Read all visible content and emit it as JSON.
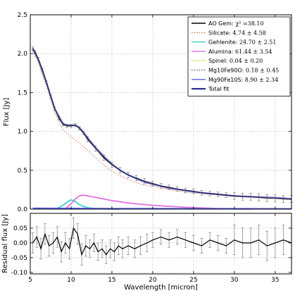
{
  "chart_data": [
    {
      "type": "line",
      "xlabel": "",
      "ylabel": "Flux [Jy]",
      "xlim": [
        5,
        37
      ],
      "ylim": [
        0,
        2.5
      ],
      "xticks": [
        5,
        10,
        15,
        20,
        25,
        30,
        35
      ],
      "yticks": [
        0.0,
        0.5,
        1.0,
        1.5,
        2.0,
        2.5
      ],
      "ytick_labels": [
        "0.0",
        "0.5",
        "1.0",
        "1.5",
        "2.0",
        "2.5"
      ],
      "grid": true,
      "legend_position": "top-right",
      "legend": [
        {
          "name": "AO Gem: ",
          "value": "χ² =38.10",
          "color": "#000000",
          "style": "solid"
        },
        {
          "name": "Silicate: ",
          "value": "4.74 ± 4.58",
          "color": "#e07050",
          "style": "dotted"
        },
        {
          "name": "Gehlenite: ",
          "value": "24.70 ± 2.51",
          "color": "#40d0d0",
          "style": "solid"
        },
        {
          "name": "Alumina: ",
          "value": "61.44 ± 3.54",
          "color": "#e070e0",
          "style": "solid"
        },
        {
          "name": "Spinel: ",
          "value": "0.04 ± 0.20",
          "color": "#d0d000",
          "style": "dotted"
        },
        {
          "name": "Mg10Fe90O: ",
          "value": "0.18 ± 0.45",
          "color": "#606060",
          "style": "dotted"
        },
        {
          "name": "Mg90Fe10S: ",
          "value": "8.90 ± 2.34",
          "color": "#6060f0",
          "style": "solid"
        },
        {
          "name": "Total fit",
          "value": "",
          "color": "#303090",
          "style": "solid"
        }
      ],
      "series": [
        {
          "name": "AO Gem",
          "color": "#000000",
          "x": [
            5.3,
            5.6,
            6,
            6.5,
            7,
            7.5,
            8,
            8.5,
            9,
            9.5,
            10,
            10.5,
            11,
            11.5,
            12,
            13,
            14,
            15,
            16,
            17,
            18,
            19,
            20,
            21,
            22,
            23,
            24,
            25,
            26,
            27,
            28,
            29,
            30,
            31,
            32,
            33,
            34,
            35,
            36,
            37
          ],
          "y": [
            2.07,
            2.02,
            1.93,
            1.79,
            1.63,
            1.45,
            1.29,
            1.17,
            1.09,
            1.07,
            1.07,
            1.08,
            1.04,
            0.98,
            0.9,
            0.78,
            0.66,
            0.57,
            0.5,
            0.44,
            0.4,
            0.36,
            0.33,
            0.3,
            0.28,
            0.26,
            0.24,
            0.23,
            0.21,
            0.2,
            0.19,
            0.18,
            0.17,
            0.16,
            0.16,
            0.15,
            0.14,
            0.14,
            0.13,
            0.13
          ]
        },
        {
          "name": "Silicate",
          "color": "#e07050",
          "x": [
            5.3,
            6,
            7,
            8,
            9,
            10,
            11,
            12,
            13,
            14,
            15,
            16,
            17,
            18,
            19,
            20,
            22,
            24,
            26,
            28,
            30,
            32,
            34,
            36,
            37
          ],
          "y": [
            2.03,
            1.88,
            1.58,
            1.24,
            1.02,
            0.93,
            0.85,
            0.76,
            0.66,
            0.57,
            0.49,
            0.43,
            0.38,
            0.34,
            0.31,
            0.29,
            0.25,
            0.22,
            0.2,
            0.18,
            0.16,
            0.15,
            0.14,
            0.13,
            0.12
          ]
        },
        {
          "name": "Gehlenite",
          "color": "#40d0d0",
          "x": [
            8,
            8.5,
            9,
            9.5,
            10,
            10.5,
            11,
            11.5,
            12,
            12.5,
            13,
            14,
            15,
            16
          ],
          "y": [
            0.0,
            0.02,
            0.05,
            0.09,
            0.12,
            0.1,
            0.06,
            0.035,
            0.02,
            0.012,
            0.008,
            0.004,
            0.002,
            0.0
          ]
        },
        {
          "name": "Alumina",
          "color": "#e070e0",
          "x": [
            9,
            9.5,
            10,
            10.5,
            11,
            11.5,
            12,
            13,
            14,
            15,
            16,
            17,
            18,
            20,
            22,
            24,
            26,
            28,
            30,
            32
          ],
          "y": [
            0.0,
            0.02,
            0.07,
            0.13,
            0.17,
            0.18,
            0.17,
            0.15,
            0.13,
            0.11,
            0.095,
            0.08,
            0.068,
            0.05,
            0.036,
            0.024,
            0.015,
            0.008,
            0.004,
            0.0
          ]
        },
        {
          "name": "Spinel",
          "color": "#d0d000",
          "x": [
            5.3,
            37
          ],
          "y": [
            0.0,
            0.0
          ]
        },
        {
          "name": "Mg10Fe90O",
          "color": "#606060",
          "x": [
            5.3,
            37
          ],
          "y": [
            0.005,
            0.005
          ]
        },
        {
          "name": "Mg90Fe10S",
          "color": "#6060f0",
          "x": [
            5.3,
            10,
            15,
            20,
            25,
            30,
            37
          ],
          "y": [
            0.012,
            0.01,
            0.008,
            0.007,
            0.006,
            0.006,
            0.005
          ]
        },
        {
          "name": "Total fit",
          "color": "#303090",
          "x": [
            5.3,
            6,
            7,
            8,
            9,
            9.5,
            10,
            10.5,
            11,
            11.5,
            12,
            13,
            14,
            15,
            16,
            17,
            18,
            19,
            20,
            22,
            24,
            26,
            28,
            30,
            32,
            34,
            36,
            37
          ],
          "y": [
            2.06,
            1.92,
            1.62,
            1.29,
            1.1,
            1.08,
            1.08,
            1.08,
            1.05,
            0.99,
            0.92,
            0.79,
            0.68,
            0.58,
            0.5,
            0.44,
            0.39,
            0.35,
            0.32,
            0.27,
            0.24,
            0.21,
            0.19,
            0.17,
            0.16,
            0.15,
            0.14,
            0.13
          ]
        }
      ]
    },
    {
      "type": "line",
      "xlabel": "Wavelength [micron]",
      "ylabel": "Residual flux [Jy]",
      "xlim": [
        5,
        37
      ],
      "ylim": [
        -0.105,
        0.1
      ],
      "xticks": [
        5,
        10,
        15,
        20,
        25,
        30,
        35
      ],
      "yticks": [
        -0.1,
        -0.05,
        0.0,
        0.05
      ],
      "ytick_labels": [
        "-0.10",
        "-0.05",
        "0.00",
        "0.05"
      ],
      "grid": true,
      "series": [
        {
          "name": "Residual",
          "color": "#000000",
          "x": [
            5.3,
            5.8,
            6.3,
            6.8,
            7.3,
            7.8,
            8.3,
            8.8,
            9.3,
            9.8,
            10.3,
            10.8,
            11.3,
            11.8,
            12.3,
            12.8,
            13.3,
            13.8,
            14.3,
            14.8,
            15.3,
            15.8,
            16.3,
            17,
            17.8,
            18.5,
            19.3,
            20,
            21,
            22,
            23,
            24,
            25,
            26,
            27,
            28,
            29,
            30,
            31,
            32,
            33,
            34,
            35,
            36,
            37
          ],
          "y": [
            0.0,
            0.02,
            -0.02,
            0.03,
            -0.01,
            0.0,
            0.02,
            -0.03,
            0.0,
            -0.02,
            0.05,
            0.03,
            -0.04,
            -0.01,
            -0.02,
            0.0,
            -0.03,
            -0.02,
            -0.04,
            -0.02,
            -0.03,
            -0.01,
            -0.02,
            -0.01,
            -0.02,
            -0.01,
            0.0,
            0.01,
            0.02,
            0.01,
            0.02,
            0.01,
            0.0,
            -0.01,
            0.01,
            0.0,
            -0.01,
            0.01,
            0.0,
            0.0,
            0.01,
            -0.01,
            0.0,
            0.01,
            0.0
          ]
        }
      ]
    }
  ]
}
